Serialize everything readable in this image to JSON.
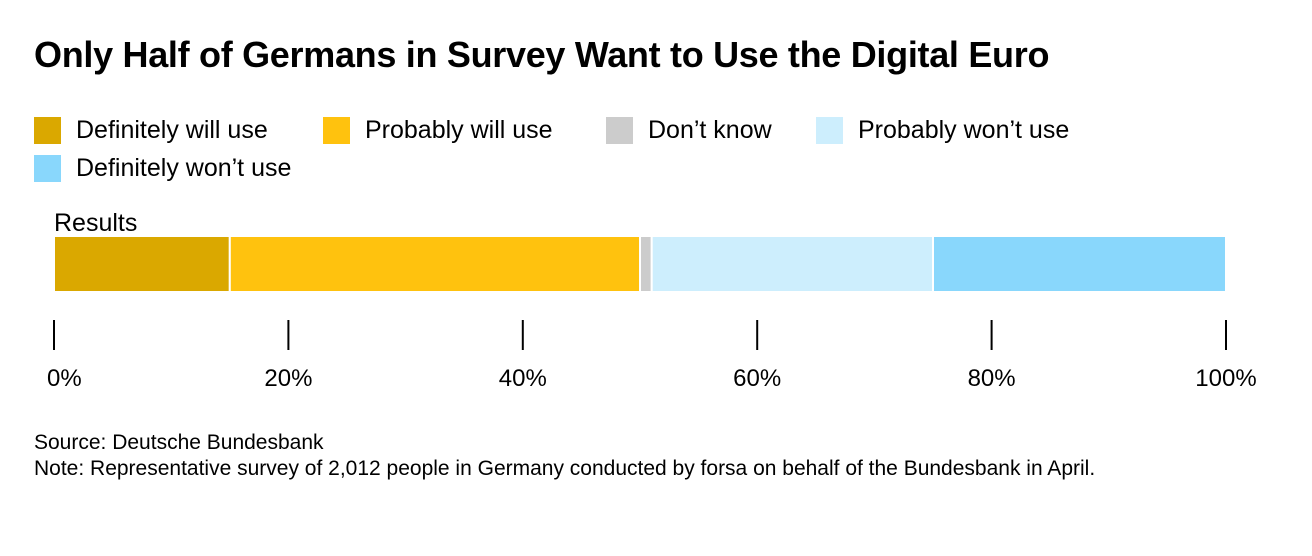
{
  "chart_data": {
    "type": "bar",
    "orientation": "horizontal-stacked",
    "title": "Only Half of Germans in Survey Want to Use the Digital Euro",
    "categories": [
      "Results"
    ],
    "series": [
      {
        "name": "Definitely will use",
        "values": [
          15
        ],
        "color": "#daa800"
      },
      {
        "name": "Probably will use",
        "values": [
          35
        ],
        "color": "#ffc20e"
      },
      {
        "name": "Don’t know",
        "values": [
          1
        ],
        "color": "#cccccc"
      },
      {
        "name": "Probably won’t use",
        "values": [
          24
        ],
        "color": "#cdeefd"
      },
      {
        "name": "Definitely won’t use",
        "values": [
          25
        ],
        "color": "#89d7fc"
      }
    ],
    "xlim": [
      0,
      100
    ],
    "x_ticks": [
      0,
      20,
      40,
      60,
      80,
      100
    ],
    "x_tick_labels": [
      "0%",
      "20%",
      "40%",
      "60%",
      "80%",
      "100%"
    ],
    "legend_position": "top-left",
    "grid": false
  },
  "footer": {
    "source": "Source: Deutsche Bundesbank",
    "note": "Note: Representative survey of 2,012 people in Germany conducted by forsa on behalf of the Bundesbank in April."
  }
}
